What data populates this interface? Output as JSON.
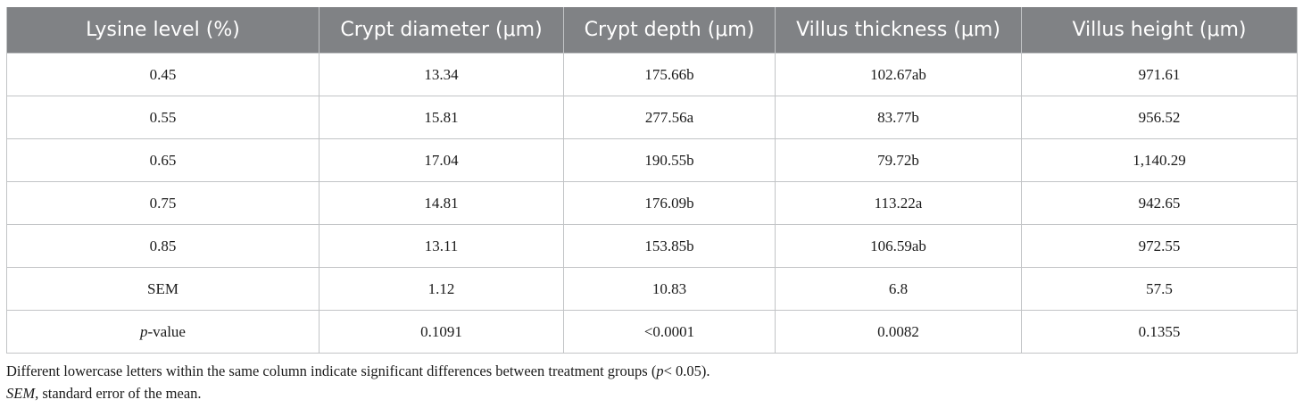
{
  "table": {
    "headers": [
      "Lysine level (%)",
      "Crypt diameter (μm)",
      "Crypt depth (μm)",
      "Villus thickness (μm)",
      "Villus height (μm)"
    ],
    "rows": [
      [
        "0.45",
        "13.34",
        "175.66b",
        "102.67ab",
        "971.61"
      ],
      [
        "0.55",
        "15.81",
        "277.56a",
        "83.77b",
        "956.52"
      ],
      [
        "0.65",
        "17.04",
        "190.55b",
        "79.72b",
        "1,140.29"
      ],
      [
        "0.75",
        "14.81",
        "176.09b",
        "113.22a",
        "942.65"
      ],
      [
        "0.85",
        "13.11",
        "153.85b",
        "106.59ab",
        "972.55"
      ],
      [
        "SEM",
        "1.12",
        "10.83",
        "6.8",
        "57.5"
      ]
    ],
    "pvalue_row": {
      "label_italic": "p",
      "label_rest": "-value",
      "values": [
        "0.1091",
        "<0.0001",
        "0.0082",
        "0.1355"
      ]
    }
  },
  "footnotes": {
    "line1_start": "Different lowercase letters within the same column indicate significant differences between treatment groups (",
    "line1_italic": "p",
    "line1_end": "< 0.05).",
    "line2_italic": "SEM",
    "line2_rest": ", standard error of the mean."
  }
}
